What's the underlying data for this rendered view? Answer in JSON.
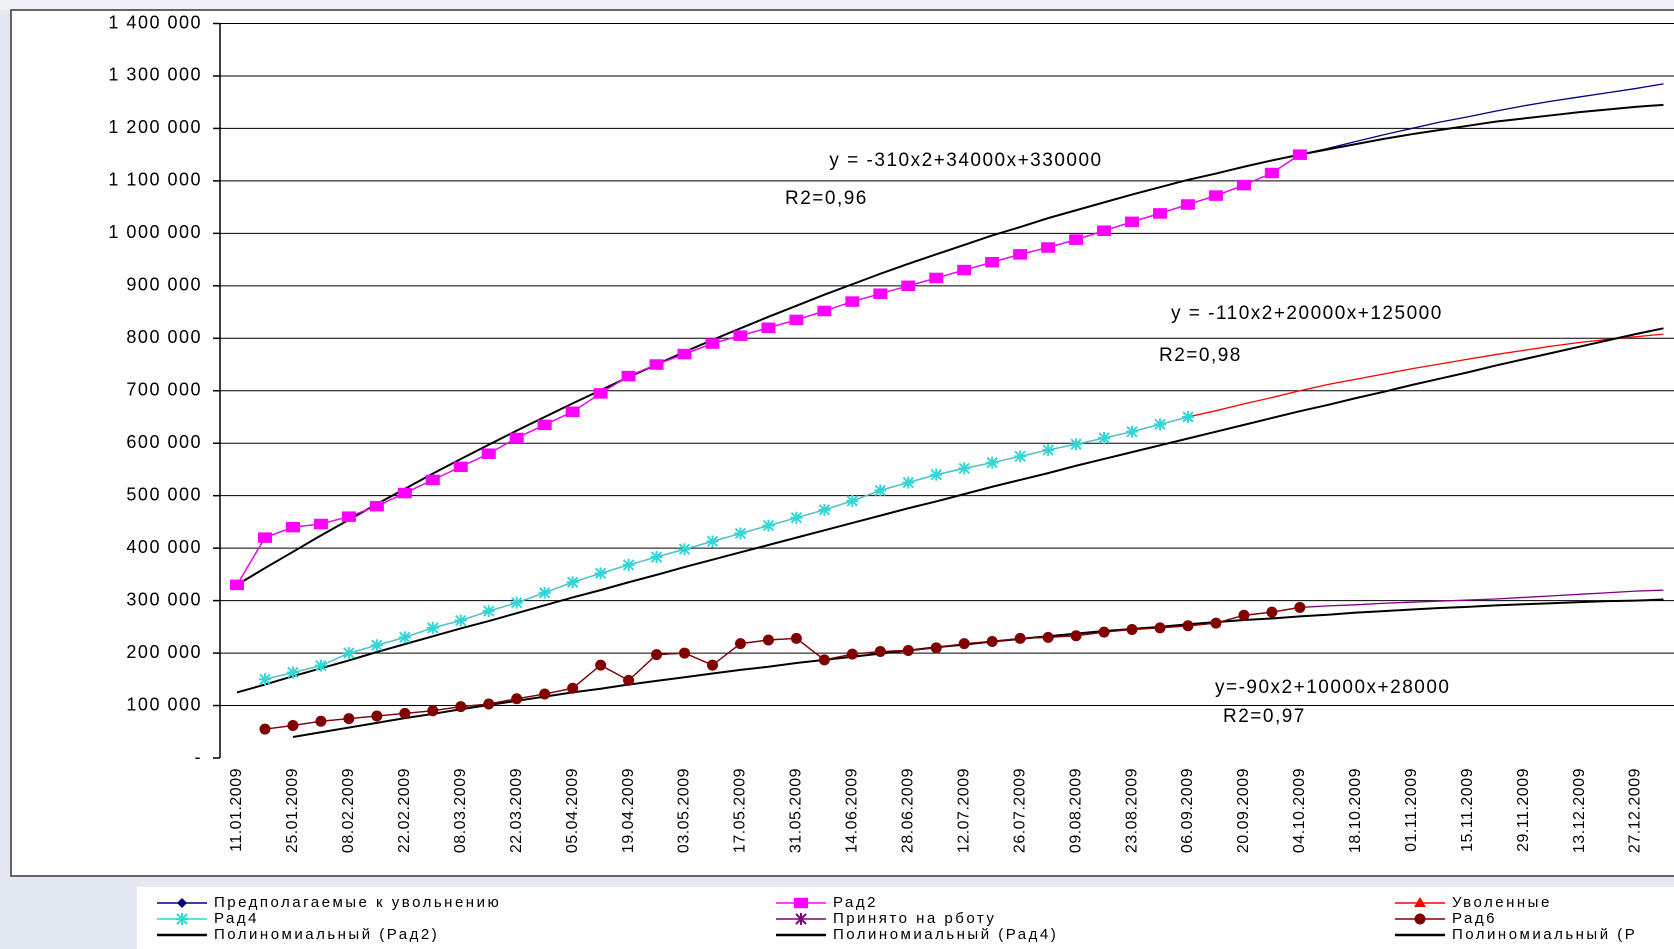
{
  "chart_data": {
    "type": "line",
    "categories": [
      "11.01.2009",
      null,
      "25.01.2009",
      null,
      "08.02.2009",
      null,
      "22.02.2009",
      null,
      "08.03.2009",
      null,
      "22.03.2009",
      null,
      "05.04.2009",
      null,
      "19.04.2009",
      null,
      "03.05.2009",
      null,
      "17.05.2009",
      null,
      "31.05.2009",
      null,
      "14.06.2009",
      null,
      "28.06.2009",
      null,
      "12.07.2009",
      null,
      "26.07.2009",
      null,
      "09.08.2009",
      null,
      "23.08.2009",
      null,
      "06.09.2009",
      null,
      "20.09.2009",
      null,
      "04.10.2009",
      null,
      "18.10.2009",
      null,
      "01.11.2009",
      null,
      "15.11.2009",
      null,
      "29.11.2009",
      null,
      "13.12.2009",
      null,
      "27.12.2009",
      null
    ],
    "ylim": [
      0,
      1400000
    ],
    "yticks": [
      {
        "value": 0,
        "label": "-"
      },
      {
        "value": 100000,
        "label": "100 000"
      },
      {
        "value": 200000,
        "label": "200 000"
      },
      {
        "value": 300000,
        "label": "300 000"
      },
      {
        "value": 400000,
        "label": "400 000"
      },
      {
        "value": 500000,
        "label": "500 000"
      },
      {
        "value": 600000,
        "label": "600 000"
      },
      {
        "value": 700000,
        "label": "700 000"
      },
      {
        "value": 800000,
        "label": "800 000"
      },
      {
        "value": 900000,
        "label": "900 000"
      },
      {
        "value": 1000000,
        "label": "1 000 000"
      },
      {
        "value": 1100000,
        "label": "1 100 000"
      },
      {
        "value": 1200000,
        "label": "1 200 000"
      },
      {
        "value": 1300000,
        "label": "1 300 000"
      },
      {
        "value": 1400000,
        "label": "1 400 000"
      }
    ],
    "grid": true,
    "series": [
      {
        "name": "Предполагаемые к увольнению",
        "color": "#000080",
        "marker": "diamond",
        "plot_markers": false,
        "values": [
          330000,
          420000,
          440000,
          446000,
          460000,
          480000,
          505000,
          530000,
          555000,
          580000,
          610000,
          635000,
          660000,
          695000,
          728000,
          750000,
          770000,
          790000,
          805000,
          820000,
          835000,
          852000,
          870000,
          885000,
          900000,
          915000,
          930000,
          945000,
          960000,
          973000,
          988000,
          1005000,
          1022000,
          1038000,
          1055000,
          1072000,
          1092000,
          1115000,
          1150000,
          1162000,
          1175000,
          1188000,
          1200000,
          1212000,
          1222000,
          1233000,
          1243000,
          1252000,
          1260000,
          1268000,
          1276000,
          1285000
        ]
      },
      {
        "name": "Рад2",
        "color": "#ff00ff",
        "marker": "square",
        "plot_markers": true,
        "values": [
          330000,
          420000,
          440000,
          446000,
          460000,
          480000,
          505000,
          530000,
          555000,
          580000,
          610000,
          635000,
          660000,
          695000,
          728000,
          750000,
          770000,
          790000,
          805000,
          820000,
          835000,
          852000,
          870000,
          885000,
          900000,
          915000,
          930000,
          945000,
          960000,
          973000,
          988000,
          1005000,
          1022000,
          1038000,
          1055000,
          1072000,
          1092000,
          1115000,
          1150000,
          null,
          null,
          null,
          null,
          null,
          null,
          null,
          null,
          null,
          null,
          null,
          null,
          null
        ]
      },
      {
        "name": "Уволенные",
        "color": "#ff0000",
        "marker": "triangle",
        "plot_markers": false,
        "values": [
          null,
          150000,
          163000,
          176000,
          200000,
          215000,
          230000,
          248000,
          262000,
          280000,
          296000,
          315000,
          335000,
          352000,
          368000,
          383000,
          398000,
          413000,
          428000,
          443000,
          458000,
          473000,
          490000,
          510000,
          525000,
          540000,
          552000,
          563000,
          575000,
          587000,
          598000,
          610000,
          622000,
          636000,
          650000,
          662000,
          675000,
          687000,
          700000,
          712000,
          722000,
          732000,
          742000,
          751000,
          760000,
          769000,
          777000,
          785000,
          792000,
          798000,
          803000,
          808000
        ]
      },
      {
        "name": "Рад4",
        "color": "#33d6d6",
        "marker": "cross",
        "plot_markers": true,
        "values": [
          null,
          150000,
          163000,
          176000,
          200000,
          215000,
          230000,
          248000,
          262000,
          280000,
          296000,
          315000,
          335000,
          352000,
          368000,
          383000,
          398000,
          413000,
          428000,
          443000,
          458000,
          473000,
          490000,
          510000,
          525000,
          540000,
          552000,
          563000,
          575000,
          587000,
          598000,
          610000,
          622000,
          636000,
          650000,
          null,
          null,
          null,
          null,
          null,
          null,
          null,
          null,
          null,
          null,
          null,
          null,
          null,
          null,
          null,
          null,
          null
        ]
      },
      {
        "name": "Принято на рботу",
        "color": "#800080",
        "marker": "star",
        "plot_markers": false,
        "values": [
          null,
          55000,
          62000,
          70000,
          75000,
          80000,
          85000,
          90000,
          98000,
          103000,
          113000,
          122000,
          133000,
          177000,
          148000,
          197000,
          200000,
          177000,
          218000,
          225000,
          228000,
          187000,
          198000,
          203000,
          205000,
          210000,
          218000,
          222000,
          228000,
          230000,
          233000,
          240000,
          245000,
          248000,
          252000,
          257000,
          272000,
          278000,
          287000,
          290000,
          292000,
          295000,
          297000,
          299000,
          301000,
          303000,
          306000,
          309000,
          312000,
          315000,
          318000,
          320000
        ]
      },
      {
        "name": "Рад6",
        "color": "#800000",
        "marker": "circle",
        "plot_markers": true,
        "values": [
          null,
          55000,
          62000,
          70000,
          75000,
          80000,
          85000,
          90000,
          98000,
          103000,
          113000,
          122000,
          133000,
          177000,
          148000,
          197000,
          200000,
          177000,
          218000,
          225000,
          228000,
          187000,
          198000,
          203000,
          205000,
          210000,
          218000,
          222000,
          228000,
          230000,
          233000,
          240000,
          245000,
          248000,
          252000,
          257000,
          272000,
          278000,
          287000,
          null,
          null,
          null,
          null,
          null,
          null,
          null,
          null,
          null,
          null,
          null,
          null,
          null
        ]
      },
      {
        "name": "Полиномиальный (Рад2)",
        "color": "#000000",
        "marker": "none",
        "plot_markers": false,
        "values": [
          330000,
          362000,
          393000,
          424000,
          454000,
          484000,
          513000,
          542000,
          570000,
          597000,
          624000,
          650000,
          676000,
          701000,
          726000,
          750000,
          774000,
          797000,
          819000,
          841000,
          862000,
          883000,
          903000,
          923000,
          942000,
          960000,
          978000,
          996000,
          1012000,
          1029000,
          1044000,
          1059000,
          1074000,
          1088000,
          1102000,
          1114000,
          1127000,
          1139000,
          1150000,
          1160000,
          1170000,
          1180000,
          1189000,
          1197000,
          1205000,
          1213000,
          1219000,
          1225000,
          1231000,
          1236000,
          1241000,
          1245000
        ]
      },
      {
        "name": "Полиномиальный (Рад4)",
        "color": "#000000",
        "marker": "none",
        "plot_markers": false,
        "values": [
          125000,
          140000,
          156000,
          171000,
          186000,
          202000,
          217000,
          232000,
          247000,
          261000,
          276000,
          291000,
          306000,
          320000,
          335000,
          349000,
          364000,
          378000,
          392000,
          406000,
          420000,
          434000,
          448000,
          462000,
          476000,
          489000,
          503000,
          517000,
          530000,
          543000,
          557000,
          570000,
          583000,
          596000,
          609000,
          622000,
          635000,
          648000,
          661000,
          673000,
          686000,
          698000,
          711000,
          723000,
          735000,
          748000,
          760000,
          772000,
          784000,
          796000,
          808000,
          819000
        ]
      },
      {
        "name": "Полиномиальный (Р",
        "color": "#000000",
        "marker": "none",
        "plot_markers": false,
        "values": [
          null,
          null,
          40000,
          49000,
          58000,
          67000,
          76000,
          84000,
          93000,
          101000,
          109000,
          117000,
          125000,
          132000,
          140000,
          147000,
          154000,
          161000,
          168000,
          174000,
          181000,
          187000,
          193000,
          199000,
          205000,
          211000,
          216000,
          222000,
          227000,
          232000,
          237000,
          242000,
          246000,
          250000,
          255000,
          259000,
          263000,
          266000,
          270000,
          273000,
          277000,
          280000,
          283000,
          286000,
          288000,
          291000,
          293000,
          295000,
          297000,
          299000,
          300000,
          302000
        ]
      }
    ],
    "annotations": [
      "y = -310x2+34000x+330000",
      "R2=0,96",
      "y = -110x2+20000x+125000",
      "R2=0,98",
      "y=-90x2+10000x+28000",
      "R2=0,97"
    ]
  }
}
